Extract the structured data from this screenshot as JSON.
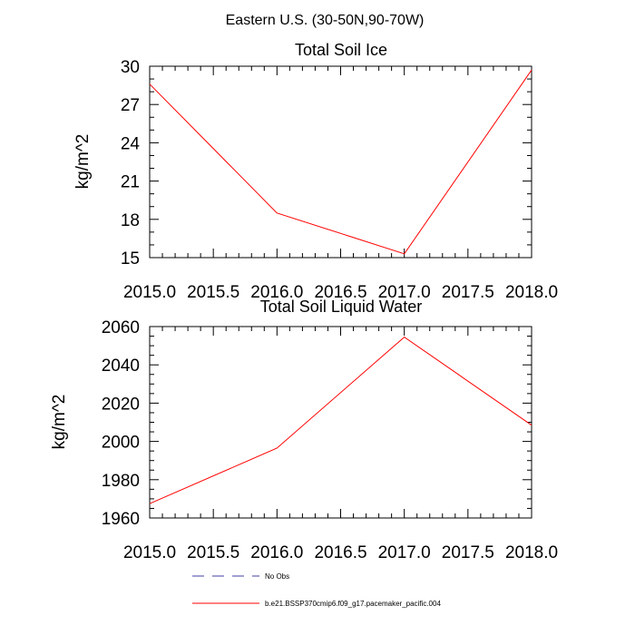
{
  "figure": {
    "title": "Eastern U.S. (30-50N,90-70W)"
  },
  "chart_data": [
    {
      "type": "line",
      "title": "Total Soil Ice",
      "xlabel": "",
      "ylabel": "kg/m^2",
      "xlim": [
        2015.0,
        2018.0
      ],
      "ylim": [
        15,
        30
      ],
      "x_ticks": [
        2015.0,
        2015.5,
        2016.0,
        2016.5,
        2017.0,
        2017.5,
        2018.0
      ],
      "x_tick_labels": [
        "2015.0",
        "2015.5",
        "2016.0",
        "2016.5",
        "2017.0",
        "2017.5",
        "2018.0"
      ],
      "y_ticks": [
        15,
        18,
        21,
        24,
        27,
        30
      ],
      "y_tick_labels": [
        "15",
        "18",
        "21",
        "24",
        "27",
        "30"
      ],
      "x_minor_step": 0.1,
      "y_minor_step": 1,
      "grid": false,
      "series": [
        {
          "color": "#ff0000",
          "x": [
            2015.0,
            2016.0,
            2017.0,
            2018.0
          ],
          "y": [
            28.6,
            18.5,
            15.3,
            29.7
          ]
        }
      ]
    },
    {
      "type": "line",
      "title": "Total Soil Liquid Water",
      "xlabel": "",
      "ylabel": "kg/m^2",
      "xlim": [
        2015.0,
        2018.0
      ],
      "ylim": [
        1960,
        2060
      ],
      "x_ticks": [
        2015.0,
        2015.5,
        2016.0,
        2016.5,
        2017.0,
        2017.5,
        2018.0
      ],
      "x_tick_labels": [
        "2015.0",
        "2015.5",
        "2016.0",
        "2016.5",
        "2017.0",
        "2017.5",
        "2018.0"
      ],
      "y_ticks": [
        1960,
        1980,
        2000,
        2020,
        2040,
        2060
      ],
      "y_tick_labels": [
        "1960",
        "1980",
        "2000",
        "2020",
        "2040",
        "2060"
      ],
      "x_minor_step": 0.1,
      "y_minor_step": 5,
      "grid": false,
      "series": [
        {
          "color": "#ff0000",
          "x": [
            2015.0,
            2016.0,
            2017.0,
            2018.0
          ],
          "y": [
            1967.5,
            1996.5,
            2054.5,
            2008.5
          ]
        }
      ]
    }
  ],
  "legend": {
    "placement": "bottom-center",
    "entries": [
      {
        "label": "No Obs",
        "color": "#3f3fa6",
        "dash": "dashed"
      },
      {
        "label": "b.e21.BSSP370cmip6.f09_g17.pacemaker_pacific.004",
        "color": "#ff0000",
        "dash": "solid"
      }
    ]
  }
}
